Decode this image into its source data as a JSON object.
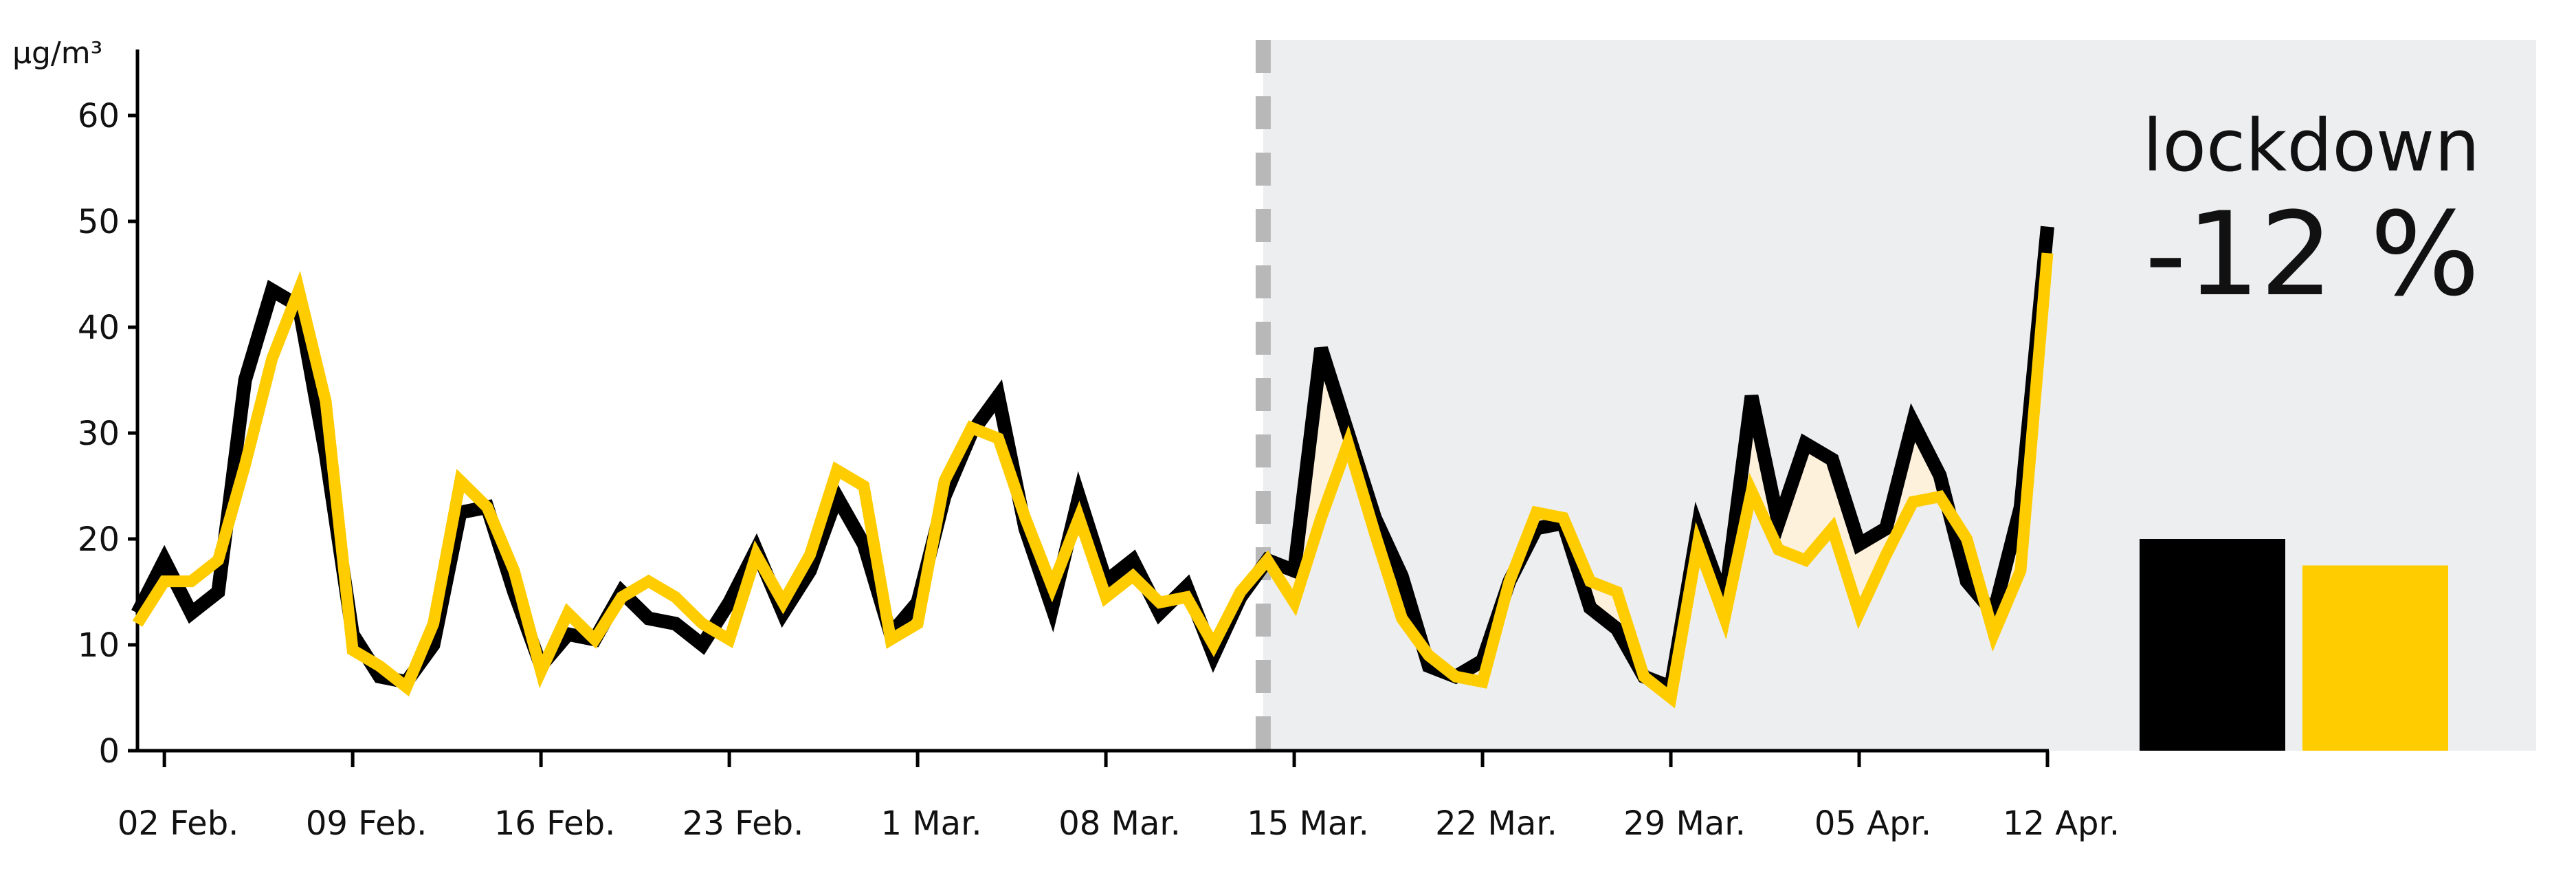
{
  "chart_data": {
    "type": "line",
    "title": "",
    "xlabel": "",
    "ylabel": "µg/m³",
    "ylim": [
      0,
      68
    ],
    "yticks": [
      0,
      10,
      20,
      30,
      40,
      50,
      60
    ],
    "grid": false,
    "legend": "none",
    "x_tick_labels": [
      "02 Feb.",
      "09 Feb.",
      "16 Feb.",
      "23 Feb.",
      "1 Mar.",
      "08 Mar.",
      "15 Mar.",
      "22 Mar.",
      "29 Mar.",
      "05 Apr.",
      "12 Apr."
    ],
    "x": [
      "2020-02-01",
      "2020-02-02",
      "2020-02-03",
      "2020-02-04",
      "2020-02-05",
      "2020-02-06",
      "2020-02-07",
      "2020-02-08",
      "2020-02-09",
      "2020-02-10",
      "2020-02-11",
      "2020-02-12",
      "2020-02-13",
      "2020-02-14",
      "2020-02-15",
      "2020-02-16",
      "2020-02-17",
      "2020-02-18",
      "2020-02-19",
      "2020-02-20",
      "2020-02-21",
      "2020-02-22",
      "2020-02-23",
      "2020-02-24",
      "2020-02-25",
      "2020-02-26",
      "2020-02-27",
      "2020-02-28",
      "2020-02-29",
      "2020-03-01",
      "2020-03-02",
      "2020-03-03",
      "2020-03-04",
      "2020-03-05",
      "2020-03-06",
      "2020-03-07",
      "2020-03-08",
      "2020-03-09",
      "2020-03-10",
      "2020-03-11",
      "2020-03-12",
      "2020-03-13",
      "2020-03-14",
      "2020-03-15",
      "2020-03-16",
      "2020-03-17",
      "2020-03-18",
      "2020-03-19",
      "2020-03-20",
      "2020-03-21",
      "2020-03-22",
      "2020-03-23",
      "2020-03-24",
      "2020-03-25",
      "2020-03-26",
      "2020-03-27",
      "2020-03-28",
      "2020-03-29",
      "2020-03-30",
      "2020-03-31",
      "2020-04-01",
      "2020-04-02",
      "2020-04-03",
      "2020-04-04",
      "2020-04-05",
      "2020-04-06",
      "2020-04-07",
      "2020-04-08",
      "2020-04-09",
      "2020-04-10",
      "2020-04-11",
      "2020-04-12"
    ],
    "series": [
      {
        "color": "#000000",
        "values": [
          13,
          18,
          13,
          15,
          35,
          43.5,
          42,
          28,
          11,
          7,
          6.5,
          10,
          22.5,
          23,
          15,
          8,
          11,
          10.5,
          15,
          12.5,
          12,
          10,
          14,
          19,
          13,
          17,
          24,
          19.5,
          11,
          14,
          24,
          30,
          33.5,
          21,
          13.5,
          24,
          16,
          18,
          13,
          15.5,
          9,
          14.5,
          18,
          17,
          38,
          30,
          22,
          16.5,
          8,
          7,
          8.5,
          16,
          21,
          21.5,
          13.5,
          11.5,
          7,
          6,
          21,
          14,
          33.5,
          21.5,
          29,
          27.5,
          19.5,
          21,
          31,
          26,
          16,
          13,
          23,
          49.5
        ]
      },
      {
        "color": "#FFCC00",
        "values": [
          12,
          16,
          16,
          18,
          27,
          37,
          43.5,
          33,
          9.5,
          8,
          6,
          12,
          25.5,
          23,
          17,
          7.5,
          13,
          10.5,
          14.5,
          16,
          14.5,
          12,
          10.5,
          18.5,
          14,
          18.5,
          26.5,
          25,
          10.5,
          12,
          25.5,
          30.5,
          29.5,
          22,
          15.5,
          22,
          14.5,
          16.5,
          14,
          14.5,
          10,
          15,
          18,
          14,
          22,
          29,
          20.5,
          12.5,
          9,
          7,
          6.5,
          16,
          22.5,
          22,
          16,
          15,
          7,
          5,
          19.5,
          12.5,
          24.5,
          19,
          18,
          21,
          13,
          18.5,
          23.5,
          24,
          20,
          11,
          17,
          47
        ]
      }
    ],
    "lockdown_start": "2020-03-14",
    "lockdown": {
      "label": "lockdown",
      "change": "-12 %",
      "bars": [
        {
          "color": "#000000",
          "value": 20
        },
        {
          "color": "#FFCC00",
          "value": 17.5
        }
      ]
    },
    "colors": {
      "lockdown_background": "#EDEEF0",
      "lockdown_divider": "#B8B8B8",
      "difference_fill": "#FDF1DC",
      "axis": "#000000"
    }
  }
}
